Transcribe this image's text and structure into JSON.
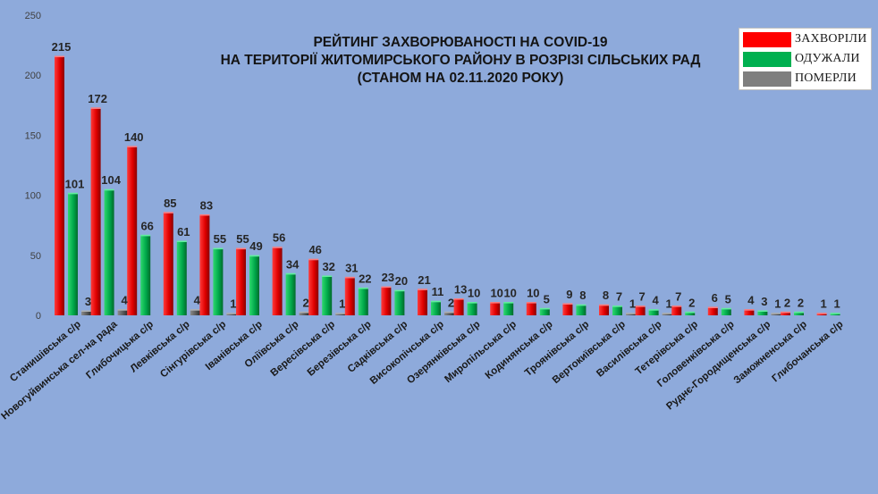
{
  "title_lines": [
    "РЕЙТИНГ ЗАХВОРЮВАНОСТІ НА COVID-19",
    "НА ТЕРИТОРІЇ ЖИТОМИРСЬКОГО РАЙОНУ В РОЗРІЗІ СІЛЬСЬКИХ РАД",
    "(СТАНОМ НА 02.11.2020 РОКУ)"
  ],
  "legend": [
    {
      "label": "ЗАХВОРІЛИ",
      "color": "#ff0000"
    },
    {
      "label": "ОДУЖАЛИ",
      "color": "#00b050"
    },
    {
      "label": "ПОМЕРЛИ",
      "color": "#7f7f7f"
    }
  ],
  "chart_data": {
    "type": "bar",
    "title": "РЕЙТИНГ ЗАХВОРЮВАНОСТІ НА COVID-19 НА ТЕРИТОРІЇ ЖИТОМИРСЬКОГО РАЙОНУ В РОЗРІЗІ СІЛЬСЬКИХ РАД (СТАНОМ НА 02.11.2020 РОКУ)",
    "ylim": [
      0,
      250
    ],
    "yticks": [
      0,
      50,
      100,
      150,
      200,
      250
    ],
    "grid": false,
    "legend_position": "top-right",
    "categories": [
      "Станишівська с/р",
      "Новогуйвинська сел-на рада",
      "Глибочицька с/р",
      "Левківська с/р",
      "Сінгурівська с/р",
      "Іванівська с/р",
      "Оліївська с/р",
      "Вересівська с/р",
      "Березівська с/р",
      "Садківська с/р",
      "Високопічська с/р",
      "Озерянківська с/р",
      "Миропільська с/р",
      "Кодинянська с/р",
      "Троянівська с/р",
      "Вертокиївська с/р",
      "Василівська с/р",
      "Тетерівська с/р",
      "Головенківська с/р",
      "Руднє-Городищенська с/р",
      "Заможненська с/р",
      "Глибочанська с/р"
    ],
    "series": [
      {
        "name": "ЗАХВОРІЛИ",
        "color": "#ff0000",
        "values": [
          215,
          172,
          140,
          85,
          83,
          55,
          56,
          46,
          31,
          23,
          21,
          13,
          10,
          10,
          9,
          8,
          7,
          7,
          6,
          4,
          2,
          1
        ]
      },
      {
        "name": "ОДУЖАЛИ",
        "color": "#00b050",
        "values": [
          101,
          104,
          66,
          61,
          55,
          49,
          34,
          32,
          22,
          20,
          11,
          10,
          10,
          5,
          8,
          7,
          4,
          2,
          5,
          3,
          2,
          1
        ]
      },
      {
        "name": "ПОМЕРЛИ",
        "color": "#7f7f7f",
        "values": [
          3,
          4,
          null,
          4,
          1,
          null,
          2,
          1,
          null,
          null,
          2,
          null,
          null,
          null,
          null,
          1,
          1,
          null,
          null,
          1,
          null,
          null
        ]
      }
    ]
  }
}
